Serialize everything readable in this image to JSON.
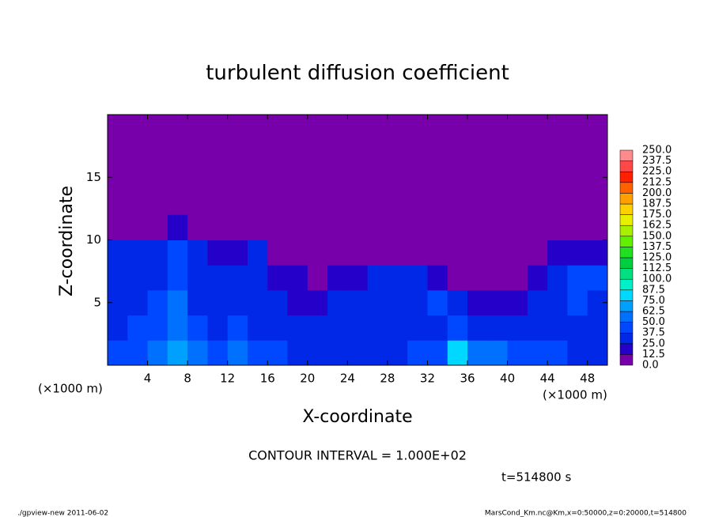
{
  "chart_data": {
    "type": "heatmap",
    "title": "turbulent diffusion coefficient",
    "x_label": "X-coordinate",
    "y_label": "Z-coordinate",
    "x_unit": "(×1000 m)",
    "y_unit": "(×1000 m)",
    "annotation": "CONTOUR INTERVAL = 1.000E+02",
    "time_label": "t=514800 s",
    "footer_left": "./gpview-new  2011-06-02",
    "footer_right": "MarsCond_Km.nc@Km,x=0:50000,z=0:20000,t=514800",
    "xlim": [
      0,
      50
    ],
    "ylim": [
      0,
      20
    ],
    "xticks": [
      4,
      8,
      12,
      16,
      20,
      24,
      28,
      32,
      36,
      40,
      44,
      48
    ],
    "yticks": [
      5,
      10,
      15
    ],
    "x_bins": [
      0,
      2,
      4,
      6,
      8,
      10,
      12,
      14,
      16,
      18,
      20,
      22,
      24,
      26,
      28,
      30,
      32,
      34,
      36,
      38,
      40,
      42,
      44,
      46,
      48,
      50
    ],
    "y_bins": [
      0,
      2,
      4,
      6,
      8,
      10,
      12
    ],
    "values": [
      [
        40,
        45,
        50,
        65,
        55,
        45,
        50,
        45,
        40,
        35,
        35,
        30,
        30,
        35,
        35,
        40,
        40,
        80,
        50,
        50,
        45,
        45,
        40,
        35,
        30
      ],
      [
        35,
        40,
        45,
        55,
        40,
        35,
        40,
        35,
        30,
        30,
        30,
        30,
        25,
        30,
        30,
        30,
        35,
        40,
        30,
        25,
        25,
        25,
        30,
        35,
        35
      ],
      [
        35,
        35,
        40,
        55,
        35,
        30,
        35,
        30,
        25,
        20,
        20,
        25,
        25,
        30,
        30,
        35,
        40,
        35,
        20,
        15,
        15,
        25,
        35,
        40,
        35
      ],
      [
        30,
        30,
        35,
        45,
        35,
        30,
        30,
        35,
        20,
        15,
        10,
        15,
        20,
        25,
        25,
        30,
        20,
        10,
        5,
        5,
        5,
        15,
        35,
        40,
        40
      ],
      [
        25,
        25,
        30,
        40,
        25,
        20,
        20,
        30,
        10,
        5,
        0,
        0,
        0,
        5,
        5,
        5,
        0,
        0,
        0,
        0,
        0,
        0,
        15,
        20,
        20
      ],
      [
        0,
        0,
        5,
        20,
        5,
        0,
        0,
        10,
        0,
        0,
        0,
        0,
        0,
        0,
        0,
        0,
        0,
        0,
        0,
        0,
        0,
        0,
        0,
        0,
        0
      ]
    ],
    "levels": [
      {
        "value": 0,
        "label": "0.0"
      },
      {
        "value": 12.5,
        "label": "12.5"
      },
      {
        "value": 25,
        "label": "25.0"
      },
      {
        "value": 37.5,
        "label": "37.5"
      },
      {
        "value": 50,
        "label": "50.0"
      },
      {
        "value": 62.5,
        "label": "62.5"
      },
      {
        "value": 75,
        "label": "75.0"
      },
      {
        "value": 87.5,
        "label": "87.5"
      },
      {
        "value": 100,
        "label": "100.0"
      },
      {
        "value": 112.5,
        "label": "112.5"
      },
      {
        "value": 125,
        "label": "125.0"
      },
      {
        "value": 137.5,
        "label": "137.5"
      },
      {
        "value": 150,
        "label": "150.0"
      },
      {
        "value": 162.5,
        "label": "162.5"
      },
      {
        "value": 175,
        "label": "175.0"
      },
      {
        "value": 187.5,
        "label": "187.5"
      },
      {
        "value": 200,
        "label": "200.0"
      },
      {
        "value": 212.5,
        "label": "212.5"
      },
      {
        "value": 225,
        "label": "225.0"
      },
      {
        "value": 237.5,
        "label": "237.5"
      },
      {
        "value": 250,
        "label": "250.0"
      }
    ],
    "colors": [
      "#7800aa",
      "#2400c8",
      "#0028e6",
      "#0048ff",
      "#0070ff",
      "#00a0ff",
      "#00d8ff",
      "#00f0c8",
      "#00e080",
      "#00d040",
      "#20e020",
      "#60f000",
      "#a8f000",
      "#e8f000",
      "#ffd000",
      "#ffa000",
      "#ff6000",
      "#ff2000",
      "#ff4848",
      "#ff8c8c"
    ]
  }
}
